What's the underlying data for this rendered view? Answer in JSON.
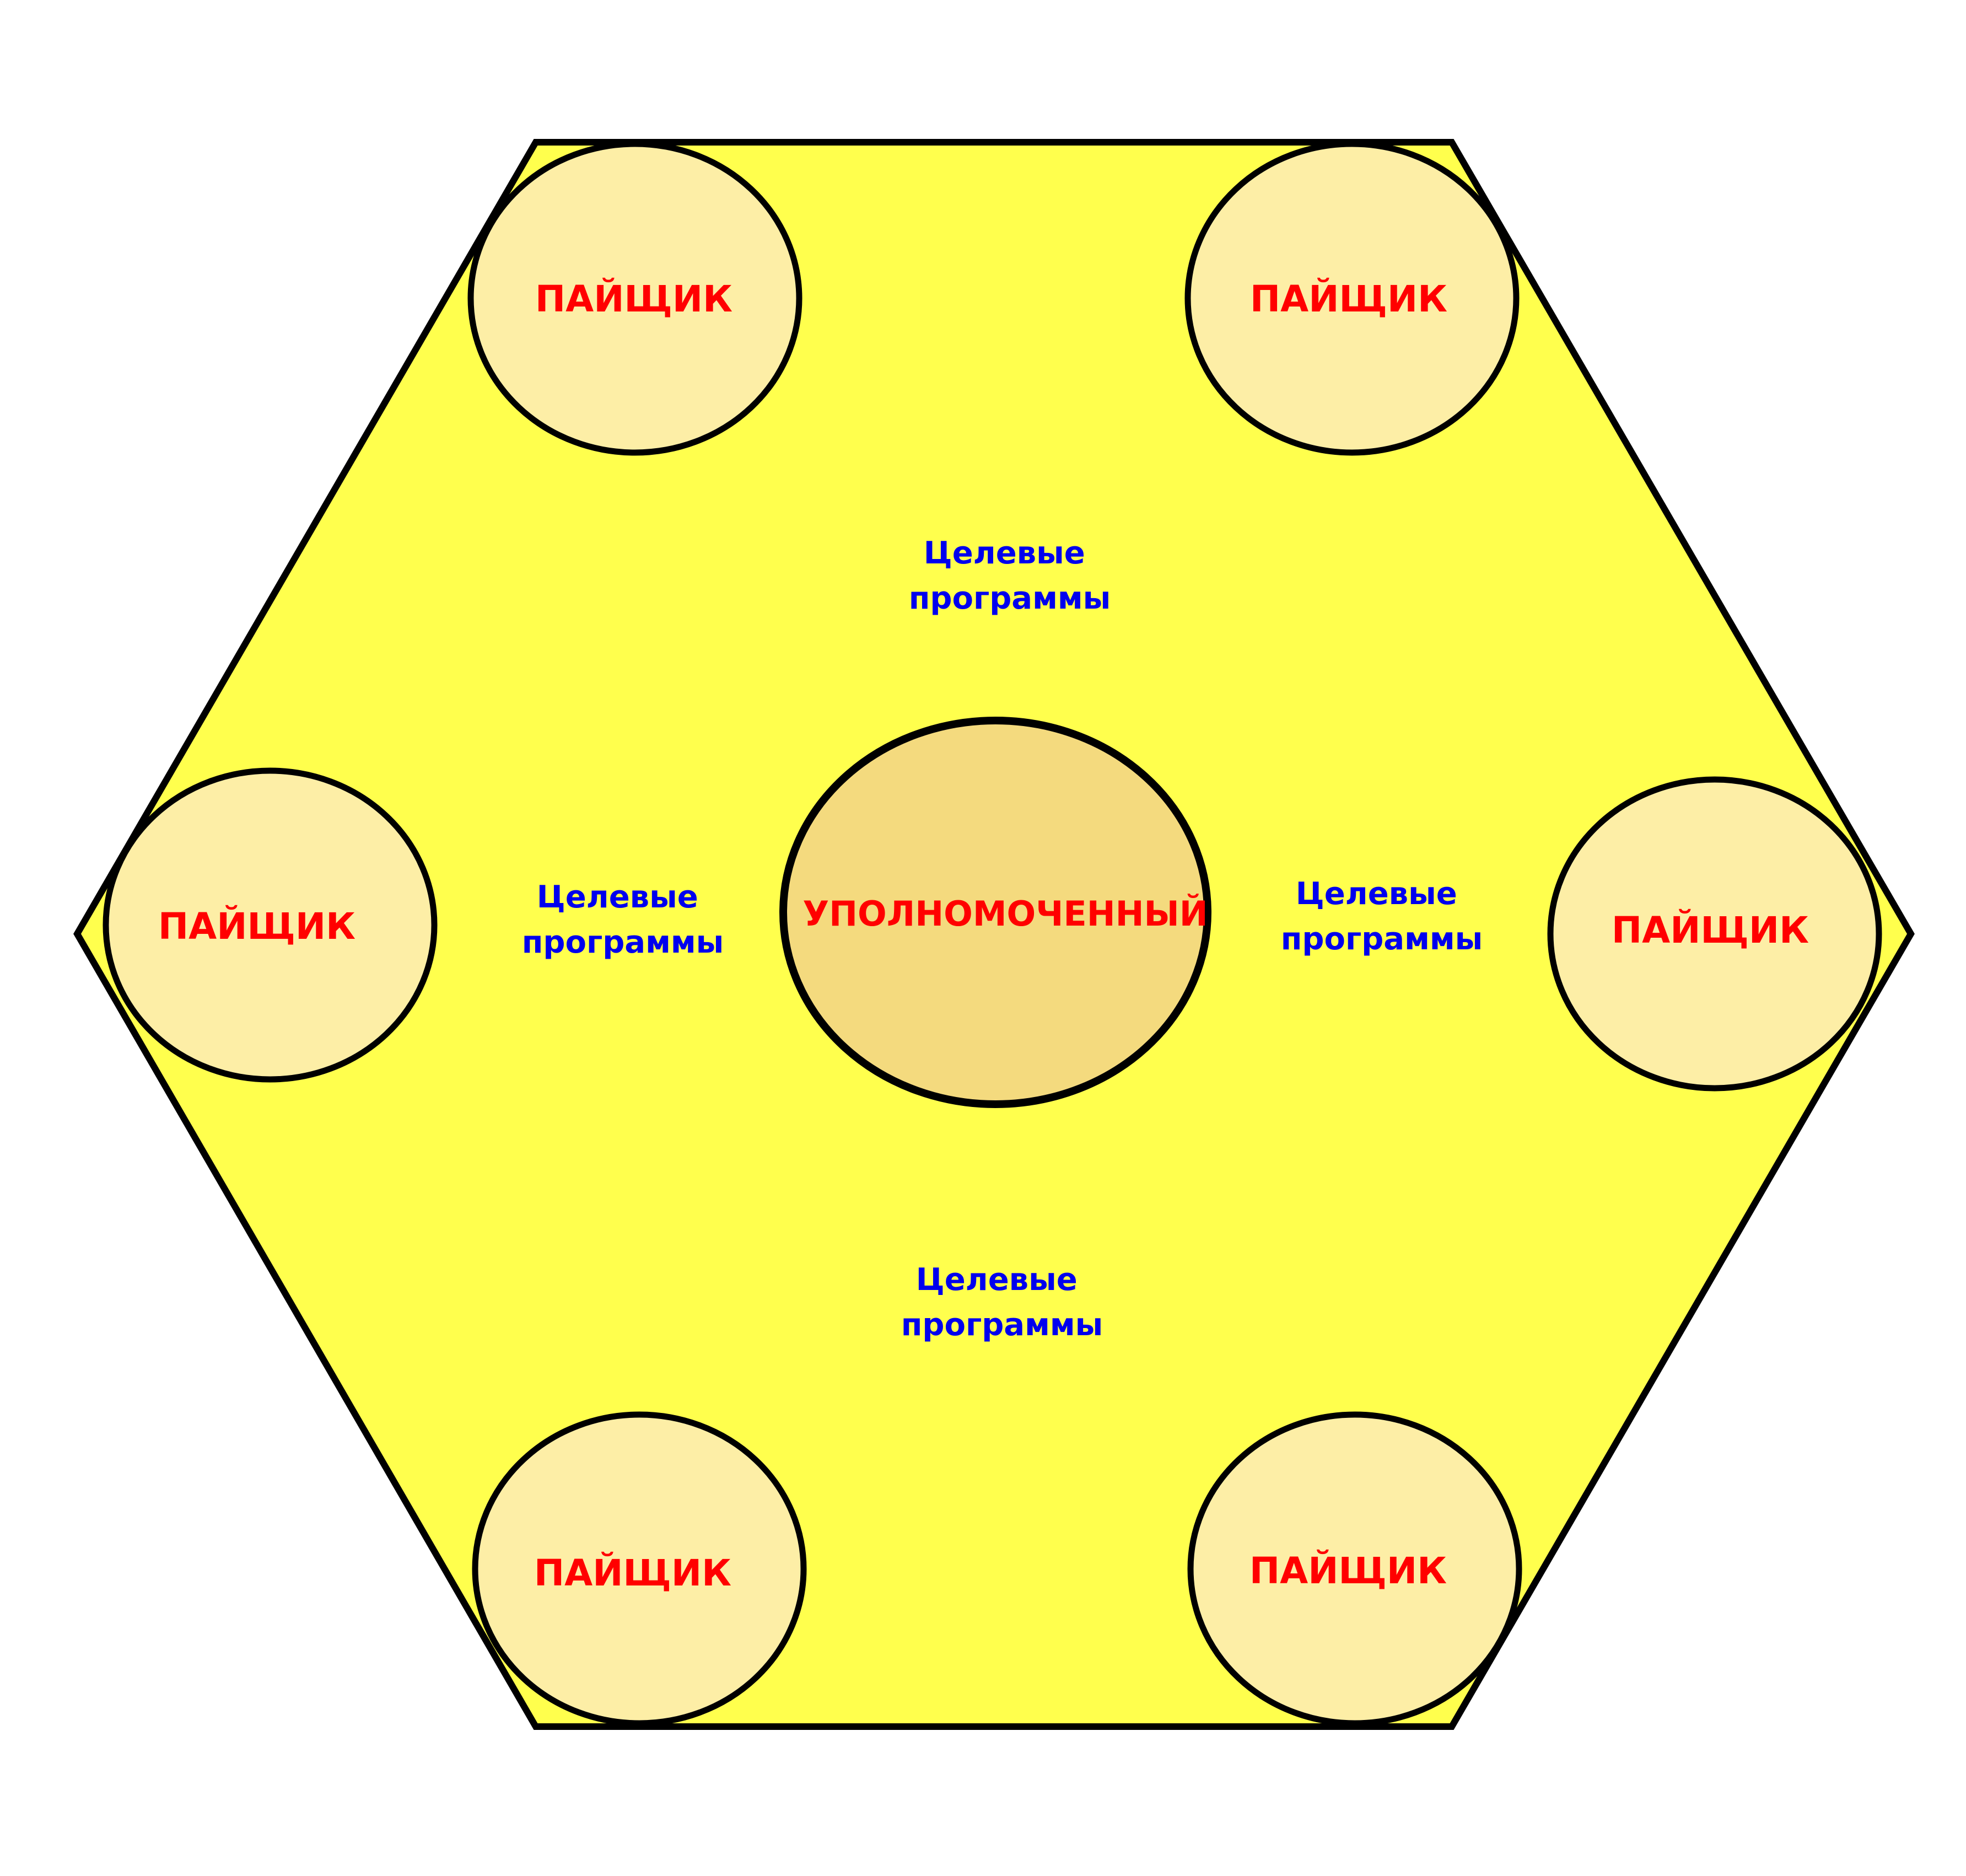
{
  "colors": {
    "hexagon_fill": "#ffff4d",
    "outline": "#000000",
    "member_fill": "#fdeea6",
    "center_fill": "#f4da7e",
    "member_text": "#ff0000",
    "program_text": "#0000ee"
  },
  "center": {
    "label": "УПОЛНОМОЧЕННЫЙ"
  },
  "members": [
    {
      "label": "ПАЙЩИК"
    },
    {
      "label": "ПАЙЩИК"
    },
    {
      "label": "ПАЙЩИК"
    },
    {
      "label": "ПАЙЩИК"
    },
    {
      "label": "ПАЙЩИК"
    },
    {
      "label": "ПАЙЩИК"
    }
  ],
  "programs": [
    {
      "line1": "Целевые",
      "line2": "программы"
    },
    {
      "line1": "Целевые",
      "line2": "программы"
    },
    {
      "line1": "Целевые",
      "line2": "программы"
    },
    {
      "line1": "Целевые",
      "line2": "программы"
    }
  ]
}
